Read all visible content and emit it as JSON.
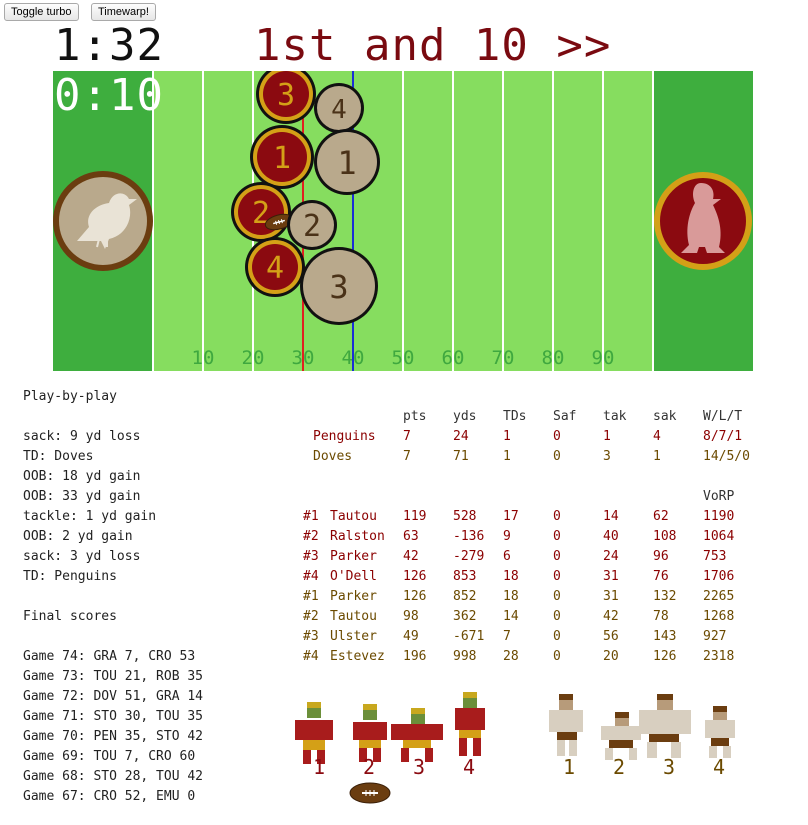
{
  "controls": {
    "turbo_label": "Toggle turbo",
    "timewarp_label": "Timewarp!"
  },
  "scoreboard": {
    "game_clock": "1:32",
    "down_distance": "1st and 10 >>",
    "play_clock": "0:10"
  },
  "field": {
    "yard_labels": [
      "10",
      "20",
      "30",
      "40",
      "50",
      "60",
      "70",
      "80",
      "90"
    ],
    "scrimmage_line_color": "#e02020",
    "first_down_line_color": "#1a2fd6",
    "home_team_tokens": [
      {
        "number": "3"
      },
      {
        "number": "1"
      },
      {
        "number": "2"
      },
      {
        "number": "4"
      }
    ],
    "away_team_tokens": [
      {
        "number": "4"
      },
      {
        "number": "1"
      },
      {
        "number": "2"
      },
      {
        "number": "3"
      }
    ],
    "left_endzone_logo": "dove-icon",
    "right_endzone_logo": "penguin-icon",
    "colors": {
      "turf": "#86dd5f",
      "endzone": "#3eae3e",
      "penguins_red": "#8b0a10",
      "penguins_gold": "#d4a017",
      "doves_tan": "#b9a98c",
      "doves_brown": "#4a3218"
    }
  },
  "play_by_play": {
    "title": "Play-by-play",
    "entries": [
      "sack: 9 yd loss",
      "TD: Doves",
      "OOB: 18 yd gain",
      "OOB: 33 yd gain",
      "tackle: 1 yd gain",
      "OOB: 2 yd gain",
      "sack: 3 yd loss",
      "TD: Penguins"
    ]
  },
  "final_scores": {
    "title": "Final scores",
    "games": [
      "Game 74: GRA 7, CRO 53",
      "Game 73: TOU 21, ROB 35",
      "Game 72: DOV 51, GRA 14",
      "Game 71: STO 30, TOU 35",
      "Game 70: PEN 35, STO 42",
      "Game 69: TOU 7, CRO 60",
      "Game 68: STO 28, TOU 42",
      "Game 67: CRO 52, EMU 0"
    ]
  },
  "team_stats": {
    "headers": [
      "pts",
      "yds",
      "TDs",
      "Saf",
      "tak",
      "sak",
      "W/L/T"
    ],
    "rows": [
      {
        "team": "Penguins",
        "pts": "7",
        "yds": "24",
        "tds": "1",
        "saf": "0",
        "tak": "1",
        "sak": "4",
        "wlt": "8/7/1"
      },
      {
        "team": "Doves",
        "pts": "7",
        "yds": "71",
        "tds": "1",
        "saf": "0",
        "tak": "3",
        "sak": "1",
        "wlt": "14/5/0"
      }
    ]
  },
  "player_stats": {
    "vorp_header": "VoRP",
    "rows": [
      {
        "slot": "#1",
        "name": "Tautou",
        "pts": "119",
        "yds": "528",
        "tds": "17",
        "saf": "0",
        "tak": "14",
        "sak": "62",
        "vorp": "1190"
      },
      {
        "slot": "#2",
        "name": "Ralston",
        "pts": "63",
        "yds": "-136",
        "tds": "9",
        "saf": "0",
        "tak": "40",
        "sak": "108",
        "vorp": "1064"
      },
      {
        "slot": "#3",
        "name": "Parker",
        "pts": "42",
        "yds": "-279",
        "tds": "6",
        "saf": "0",
        "tak": "24",
        "sak": "96",
        "vorp": "753"
      },
      {
        "slot": "#4",
        "name": "O'Dell",
        "pts": "126",
        "yds": "853",
        "tds": "18",
        "saf": "0",
        "tak": "31",
        "sak": "76",
        "vorp": "1706"
      },
      {
        "slot": "#1",
        "name": "Parker",
        "pts": "126",
        "yds": "852",
        "tds": "18",
        "saf": "0",
        "tak": "31",
        "sak": "132",
        "vorp": "2265"
      },
      {
        "slot": "#2",
        "name": "Tautou",
        "pts": "98",
        "yds": "362",
        "tds": "14",
        "saf": "0",
        "tak": "42",
        "sak": "78",
        "vorp": "1268"
      },
      {
        "slot": "#3",
        "name": "Ulster",
        "pts": "49",
        "yds": "-671",
        "tds": "7",
        "saf": "0",
        "tak": "56",
        "sak": "143",
        "vorp": "927"
      },
      {
        "slot": "#4",
        "name": "Estevez",
        "pts": "196",
        "yds": "998",
        "tds": "28",
        "saf": "0",
        "tak": "20",
        "sak": "126",
        "vorp": "2318"
      }
    ]
  },
  "rosters": {
    "penguins_numbers": [
      "1",
      "2",
      "3",
      "4"
    ],
    "doves_numbers": [
      "1",
      "2",
      "3",
      "4"
    ]
  }
}
